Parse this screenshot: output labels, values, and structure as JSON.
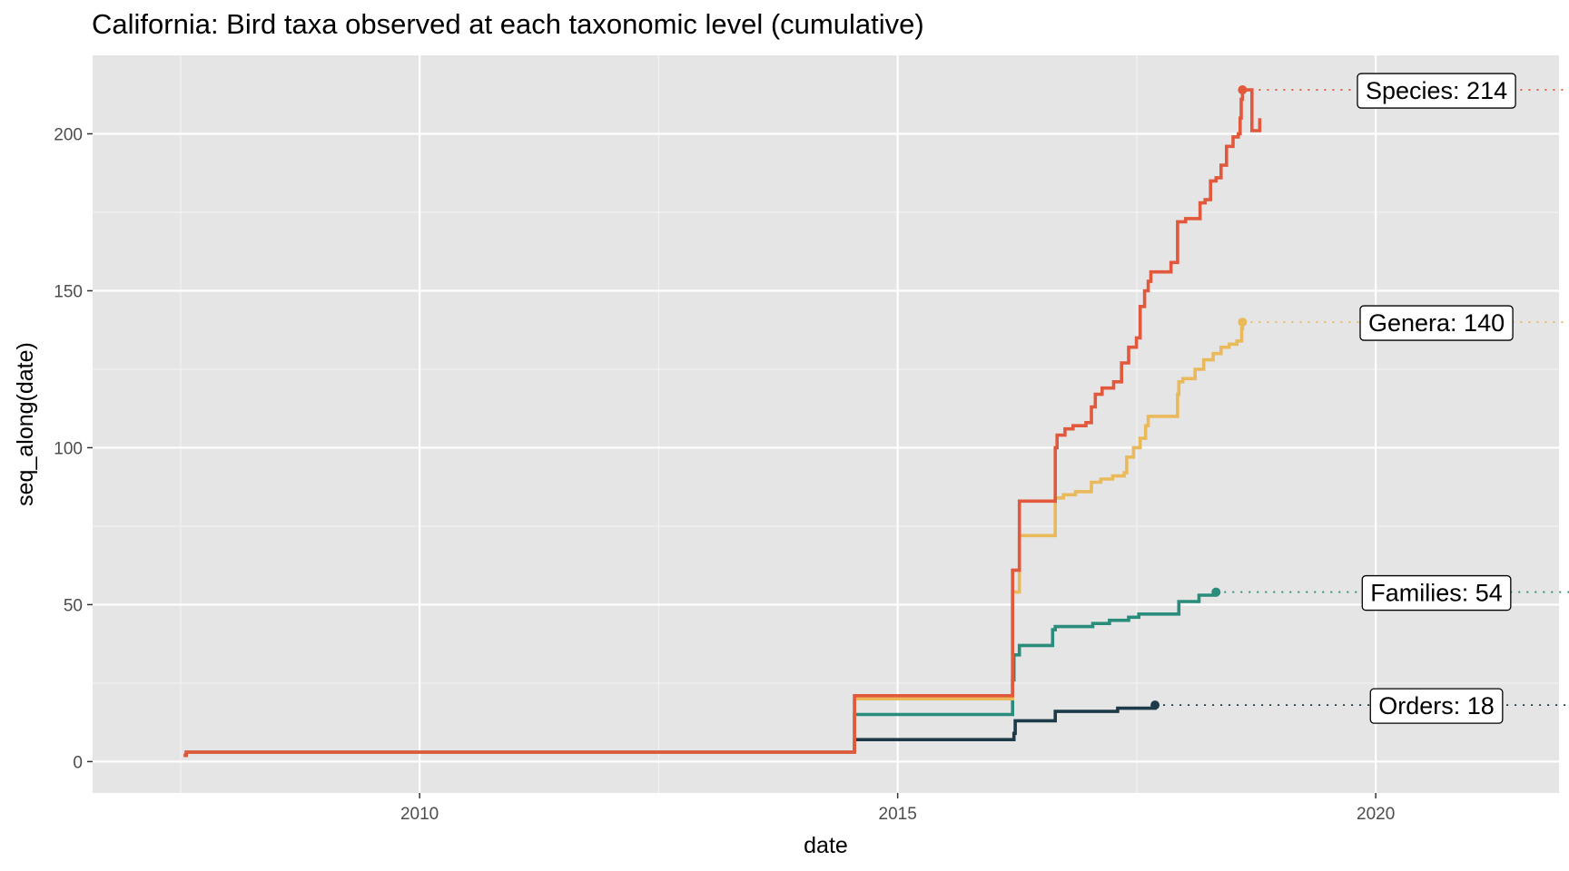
{
  "chart_data": {
    "type": "line",
    "step": true,
    "title": "California: Bird taxa observed at each taxonomic level (cumulative)",
    "xlabel": "date",
    "ylabel": "seq_along(date)",
    "x_scale": "date",
    "xlim": [
      "2006-08-01",
      "2021-12-01"
    ],
    "ylim": [
      -10,
      225
    ],
    "x_ticks": [
      "2010-01-01",
      "2015-01-01",
      "2020-01-01"
    ],
    "x_tick_labels": [
      "2010",
      "2015",
      "2020"
    ],
    "y_ticks": [
      0,
      50,
      100,
      150,
      200
    ],
    "y_tick_labels": [
      "0",
      "50",
      "100",
      "150",
      "200"
    ],
    "grid": true,
    "legend": "none",
    "background": "#e5e5e5",
    "series": [
      {
        "key": "orders",
        "color": "#1c3a48",
        "end_label": "Orders: 18",
        "end_value": 18,
        "end_date": "2017-09-10",
        "label_date": "2020-08-20",
        "points": [
          [
            "2007-07-15",
            2
          ],
          [
            "2007-07-25",
            3
          ],
          [
            "2014-07-10",
            3
          ],
          [
            "2014-07-20",
            7
          ],
          [
            "2016-03-15",
            7
          ],
          [
            "2016-03-20",
            9
          ],
          [
            "2016-03-25",
            13
          ],
          [
            "2016-08-15",
            13
          ],
          [
            "2016-08-25",
            16
          ],
          [
            "2017-04-10",
            16
          ],
          [
            "2017-04-20",
            17
          ],
          [
            "2017-09-10",
            18
          ]
        ]
      },
      {
        "key": "families",
        "color": "#2a8c7a",
        "end_label": "Families: 54",
        "end_value": 54,
        "end_date": "2018-05-01",
        "label_date": "2020-08-20",
        "points": [
          [
            "2007-07-15",
            2
          ],
          [
            "2007-07-25",
            3
          ],
          [
            "2014-07-10",
            3
          ],
          [
            "2014-07-20",
            15
          ],
          [
            "2016-03-10",
            15
          ],
          [
            "2016-03-15",
            26
          ],
          [
            "2016-03-20",
            34
          ],
          [
            "2016-04-10",
            37
          ],
          [
            "2016-08-10",
            37
          ],
          [
            "2016-08-15",
            42
          ],
          [
            "2016-08-25",
            43
          ],
          [
            "2017-01-15",
            44
          ],
          [
            "2017-03-20",
            45
          ],
          [
            "2017-06-01",
            46
          ],
          [
            "2017-07-10",
            47
          ],
          [
            "2017-12-01",
            47
          ],
          [
            "2017-12-10",
            51
          ],
          [
            "2018-02-15",
            51
          ],
          [
            "2018-02-25",
            53
          ],
          [
            "2018-05-01",
            54
          ]
        ]
      },
      {
        "key": "genera",
        "color": "#e9b95a",
        "end_label": "Genera: 140",
        "end_value": 140,
        "end_date": "2018-08-10",
        "label_date": "2020-08-20",
        "points": [
          [
            "2007-07-15",
            2
          ],
          [
            "2007-07-25",
            3
          ],
          [
            "2014-07-10",
            3
          ],
          [
            "2014-07-20",
            20
          ],
          [
            "2016-03-10",
            20
          ],
          [
            "2016-03-15",
            54
          ],
          [
            "2016-04-05",
            54
          ],
          [
            "2016-04-10",
            72
          ],
          [
            "2016-08-15",
            72
          ],
          [
            "2016-08-25",
            84
          ],
          [
            "2016-09-25",
            85
          ],
          [
            "2016-11-10",
            86
          ],
          [
            "2017-01-10",
            89
          ],
          [
            "2017-02-15",
            90
          ],
          [
            "2017-04-01",
            91
          ],
          [
            "2017-05-15",
            92
          ],
          [
            "2017-05-25",
            97
          ],
          [
            "2017-06-20",
            100
          ],
          [
            "2017-07-15",
            103
          ],
          [
            "2017-08-05",
            107
          ],
          [
            "2017-08-15",
            110
          ],
          [
            "2017-12-01",
            110
          ],
          [
            "2017-12-05",
            117
          ],
          [
            "2017-12-10",
            121
          ],
          [
            "2017-12-25",
            122
          ],
          [
            "2018-02-01",
            122
          ],
          [
            "2018-02-10",
            125
          ],
          [
            "2018-03-15",
            128
          ],
          [
            "2018-04-20",
            130
          ],
          [
            "2018-05-20",
            132
          ],
          [
            "2018-06-20",
            133
          ],
          [
            "2018-07-20",
            134
          ],
          [
            "2018-08-05",
            134
          ],
          [
            "2018-08-07",
            138
          ],
          [
            "2018-08-10",
            140
          ]
        ]
      },
      {
        "key": "species",
        "color": "#e2583c",
        "end_label": "Species: 214",
        "end_value": 214,
        "end_date": "2018-08-10",
        "label_date": "2020-08-20",
        "points": [
          [
            "2007-07-15",
            2
          ],
          [
            "2007-07-25",
            3
          ],
          [
            "2014-07-10",
            3
          ],
          [
            "2014-07-20",
            21
          ],
          [
            "2016-03-10",
            21
          ],
          [
            "2016-03-15",
            61
          ],
          [
            "2016-04-05",
            61
          ],
          [
            "2016-04-10",
            83
          ],
          [
            "2016-08-20",
            83
          ],
          [
            "2016-08-25",
            100
          ],
          [
            "2016-09-01",
            104
          ],
          [
            "2016-10-01",
            106
          ],
          [
            "2016-11-01",
            107
          ],
          [
            "2016-12-20",
            108
          ],
          [
            "2017-01-10",
            113
          ],
          [
            "2017-01-25",
            117
          ],
          [
            "2017-02-20",
            119
          ],
          [
            "2017-04-05",
            121
          ],
          [
            "2017-05-05",
            127
          ],
          [
            "2017-06-01",
            132
          ],
          [
            "2017-07-01",
            135
          ],
          [
            "2017-07-15",
            145
          ],
          [
            "2017-08-01",
            150
          ],
          [
            "2017-08-15",
            153
          ],
          [
            "2017-08-25",
            156
          ],
          [
            "2017-11-01",
            156
          ],
          [
            "2017-11-10",
            159
          ],
          [
            "2017-12-01",
            159
          ],
          [
            "2017-12-05",
            172
          ],
          [
            "2018-01-05",
            173
          ],
          [
            "2018-02-25",
            173
          ],
          [
            "2018-03-01",
            178
          ],
          [
            "2018-03-20",
            179
          ],
          [
            "2018-04-10",
            185
          ],
          [
            "2018-05-01",
            186
          ],
          [
            "2018-05-20",
            190
          ],
          [
            "2018-06-10",
            196
          ],
          [
            "2018-07-05",
            199
          ],
          [
            "2018-07-25",
            200
          ],
          [
            "2018-09-15",
            201
          ],
          [
            "2018-10-15",
            205
          ],
          [
            "2018-08-01",
            205
          ],
          [
            "2018-08-05",
            211
          ],
          [
            "2018-08-10",
            214
          ]
        ]
      }
    ]
  }
}
